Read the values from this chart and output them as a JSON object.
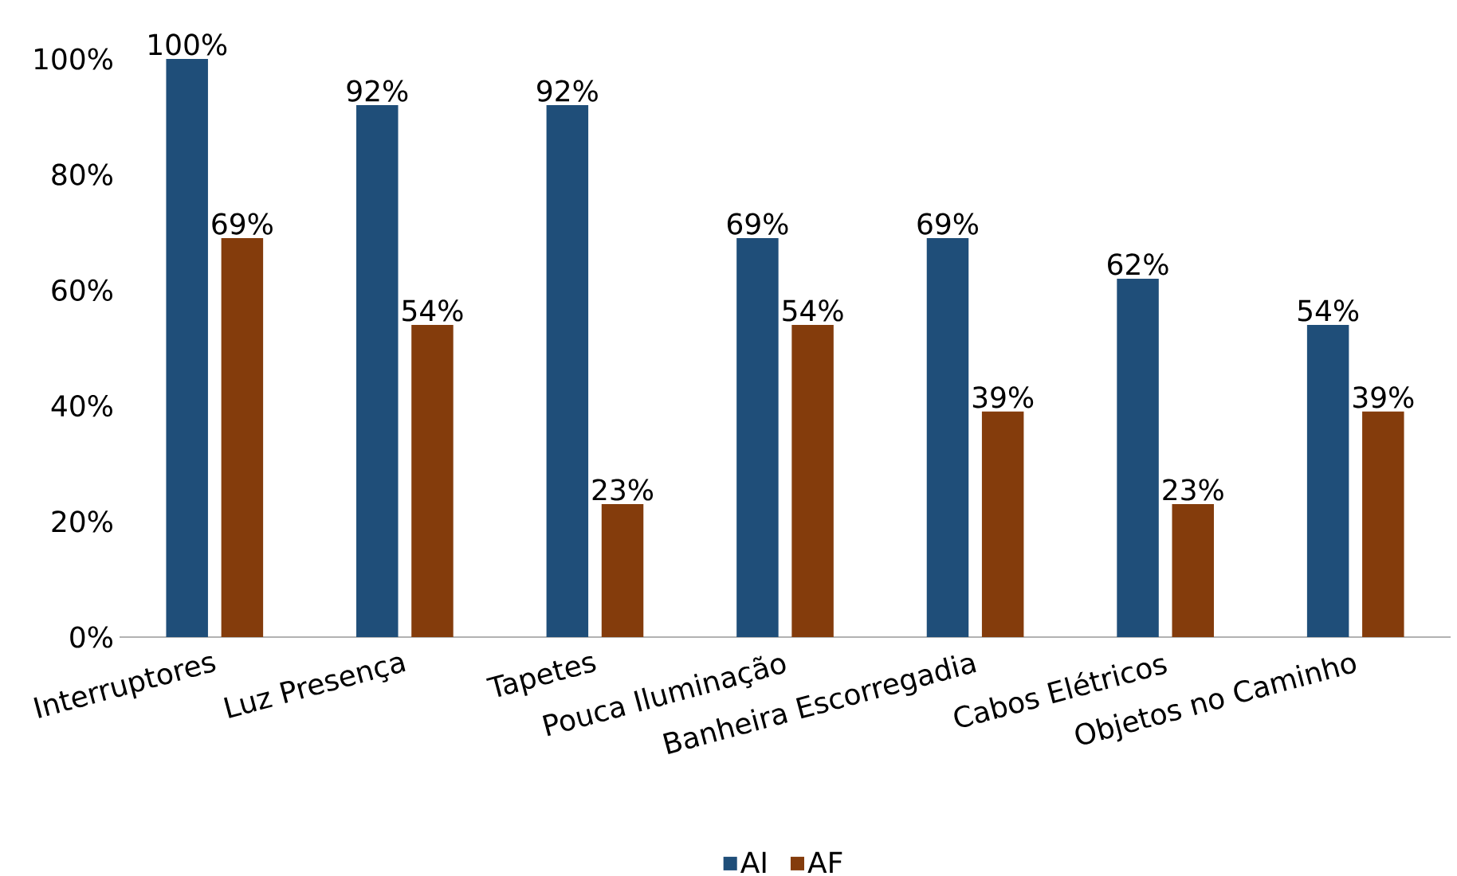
{
  "chart_data": {
    "type": "bar",
    "categories": [
      "Interruptores",
      "Luz Presença",
      "Tapetes",
      "Pouca Iluminação",
      "Banheira Escorregadia",
      "Cabos Elétricos",
      "Objetos no Caminho"
    ],
    "series": [
      {
        "name": "AI",
        "color": "#1f4e79",
        "values": [
          100,
          92,
          92,
          69,
          69,
          62,
          54
        ],
        "value_labels": [
          "100%",
          "92%",
          "92%",
          "69%",
          "69%",
          "62%",
          "54%"
        ]
      },
      {
        "name": "AF",
        "color": "#843c0c",
        "values": [
          69,
          54,
          23,
          54,
          39,
          23,
          39
        ],
        "value_labels": [
          "69%",
          "54%",
          "23%",
          "54%",
          "39%",
          "23%",
          "39%"
        ]
      }
    ],
    "ylim": [
      0,
      100
    ],
    "yticks": [
      {
        "value": 0,
        "label": "0%"
      },
      {
        "value": 20,
        "label": "20%"
      },
      {
        "value": 40,
        "label": "40%"
      },
      {
        "value": 60,
        "label": "60%"
      },
      {
        "value": 80,
        "label": "80%"
      },
      {
        "value": 100,
        "label": "100%"
      }
    ],
    "grid": false,
    "legend": "bottom"
  }
}
